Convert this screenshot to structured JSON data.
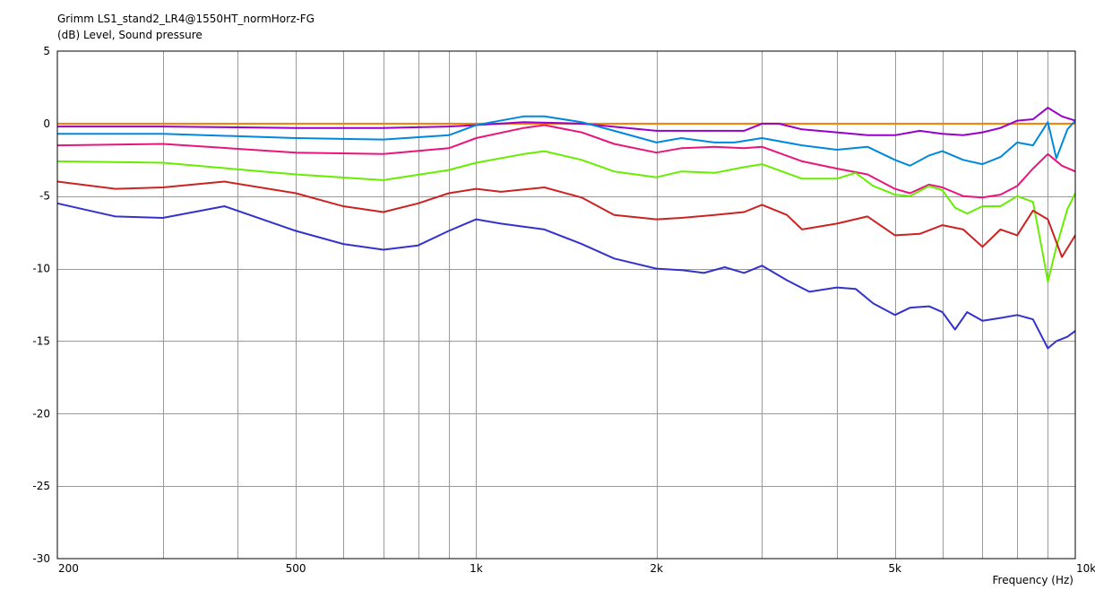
{
  "chart_data": {
    "type": "line",
    "title": "Grimm LS1_stand2_LR4@1550HT_normHorz-FG",
    "ylabel": "(dB)  Level, Sound pressure",
    "xlabel": "Frequency  (Hz)",
    "xscale": "log",
    "xlim": [
      200,
      10000
    ],
    "ylim": [
      -30,
      5
    ],
    "grid": true,
    "x_ticks": [
      200,
      500,
      1000,
      2000,
      5000,
      10000
    ],
    "x_tick_labels": [
      "200",
      "500",
      "1k",
      "2k",
      "5k",
      "10k"
    ],
    "y_ticks": [
      5,
      0,
      -5,
      -10,
      -15,
      -20,
      -25,
      -30
    ],
    "y_tick_labels": [
      "5",
      "0",
      "-5",
      "-10",
      "-15",
      "-20",
      "-25",
      "-30"
    ],
    "series": [
      {
        "color": "#ff8000",
        "x": [
          200,
          10000
        ],
        "y": [
          0,
          0
        ]
      },
      {
        "color": "#9900cc",
        "x": [
          200,
          300,
          500,
          700,
          900,
          1000,
          1200,
          1500,
          2000,
          2500,
          2800,
          3000,
          3200,
          3500,
          4000,
          4500,
          5000,
          5500,
          6000,
          6500,
          7000,
          7500,
          8000,
          8500,
          9000,
          9500,
          10000
        ],
        "y": [
          -0.2,
          -0.2,
          -0.3,
          -0.3,
          -0.2,
          -0.1,
          0.1,
          0.0,
          -0.5,
          -0.5,
          -0.5,
          0.0,
          0.0,
          -0.4,
          -0.6,
          -0.8,
          -0.8,
          -0.5,
          -0.7,
          -0.8,
          -0.6,
          -0.3,
          0.2,
          0.3,
          1.1,
          0.5,
          0.2
        ]
      },
      {
        "color": "#0088dd",
        "x": [
          200,
          300,
          500,
          700,
          900,
          1000,
          1200,
          1300,
          1500,
          1700,
          2000,
          2200,
          2500,
          2700,
          3000,
          3500,
          4000,
          4500,
          5000,
          5300,
          5700,
          6000,
          6500,
          7000,
          7500,
          8000,
          8500,
          9000,
          9300,
          9700,
          10000
        ],
        "y": [
          -0.7,
          -0.7,
          -1.0,
          -1.1,
          -0.8,
          -0.1,
          0.5,
          0.5,
          0.1,
          -0.5,
          -1.3,
          -1.0,
          -1.3,
          -1.3,
          -1.0,
          -1.5,
          -1.8,
          -1.6,
          -2.5,
          -2.9,
          -2.2,
          -1.9,
          -2.5,
          -2.8,
          -2.3,
          -1.3,
          -1.5,
          0.1,
          -2.4,
          -0.4,
          0.2
        ]
      },
      {
        "color": "#e8157f",
        "x": [
          200,
          300,
          500,
          700,
          900,
          1000,
          1200,
          1300,
          1500,
          1700,
          2000,
          2200,
          2500,
          2800,
          3000,
          3500,
          4000,
          4500,
          5000,
          5300,
          5700,
          6000,
          6500,
          7000,
          7500,
          8000,
          8500,
          9000,
          9500,
          10000
        ],
        "y": [
          -1.5,
          -1.4,
          -2.0,
          -2.1,
          -1.7,
          -1.0,
          -0.3,
          -0.1,
          -0.6,
          -1.4,
          -2.0,
          -1.7,
          -1.6,
          -1.7,
          -1.6,
          -2.6,
          -3.1,
          -3.5,
          -4.5,
          -4.8,
          -4.2,
          -4.4,
          -5.0,
          -5.1,
          -4.9,
          -4.3,
          -3.1,
          -2.1,
          -2.9,
          -3.3
        ]
      },
      {
        "color": "#66ee00",
        "x": [
          200,
          300,
          500,
          700,
          900,
          1000,
          1200,
          1300,
          1500,
          1700,
          2000,
          2200,
          2500,
          2800,
          3000,
          3500,
          4000,
          4300,
          4600,
          5000,
          5300,
          5700,
          6000,
          6300,
          6600,
          7000,
          7500,
          8000,
          8500,
          8800,
          9000,
          9300,
          9700,
          10000
        ],
        "y": [
          -2.6,
          -2.7,
          -3.5,
          -3.9,
          -3.2,
          -2.7,
          -2.1,
          -1.9,
          -2.5,
          -3.3,
          -3.7,
          -3.3,
          -3.4,
          -3.0,
          -2.8,
          -3.8,
          -3.8,
          -3.4,
          -4.3,
          -4.9,
          -5.0,
          -4.3,
          -4.6,
          -5.8,
          -6.2,
          -5.7,
          -5.7,
          -5.0,
          -5.4,
          -8.7,
          -10.9,
          -8.5,
          -5.9,
          -4.8
        ]
      },
      {
        "color": "#cc2222",
        "x": [
          200,
          250,
          300,
          380,
          500,
          600,
          700,
          800,
          900,
          1000,
          1100,
          1300,
          1500,
          1700,
          2000,
          2200,
          2500,
          2800,
          3000,
          3300,
          3500,
          4000,
          4500,
          5000,
          5500,
          6000,
          6500,
          7000,
          7500,
          8000,
          8500,
          9000,
          9500,
          10000
        ],
        "y": [
          -4.0,
          -4.5,
          -4.4,
          -4.0,
          -4.8,
          -5.7,
          -6.1,
          -5.5,
          -4.8,
          -4.5,
          -4.7,
          -4.4,
          -5.1,
          -6.3,
          -6.6,
          -6.5,
          -6.3,
          -6.1,
          -5.6,
          -6.3,
          -7.3,
          -6.9,
          -6.4,
          -7.7,
          -7.6,
          -7.0,
          -7.3,
          -8.5,
          -7.3,
          -7.7,
          -6.0,
          -6.6,
          -9.2,
          -7.7
        ]
      },
      {
        "color": "#3333cc",
        "x": [
          200,
          250,
          300,
          380,
          500,
          600,
          700,
          800,
          900,
          1000,
          1100,
          1300,
          1500,
          1700,
          2000,
          2200,
          2400,
          2600,
          2800,
          3000,
          3300,
          3600,
          4000,
          4300,
          4600,
          5000,
          5300,
          5700,
          6000,
          6300,
          6600,
          7000,
          7500,
          8000,
          8500,
          9000,
          9300,
          9700,
          10000
        ],
        "y": [
          -5.5,
          -6.4,
          -6.5,
          -5.7,
          -7.4,
          -8.3,
          -8.7,
          -8.4,
          -7.4,
          -6.6,
          -6.9,
          -7.3,
          -8.3,
          -9.3,
          -10.0,
          -10.1,
          -10.3,
          -9.9,
          -10.3,
          -9.8,
          -10.8,
          -11.6,
          -11.3,
          -11.4,
          -12.4,
          -13.2,
          -12.7,
          -12.6,
          -13.0,
          -14.2,
          -13.0,
          -13.6,
          -13.4,
          -13.2,
          -13.5,
          -15.5,
          -15.0,
          -14.7,
          -14.3
        ]
      }
    ]
  }
}
